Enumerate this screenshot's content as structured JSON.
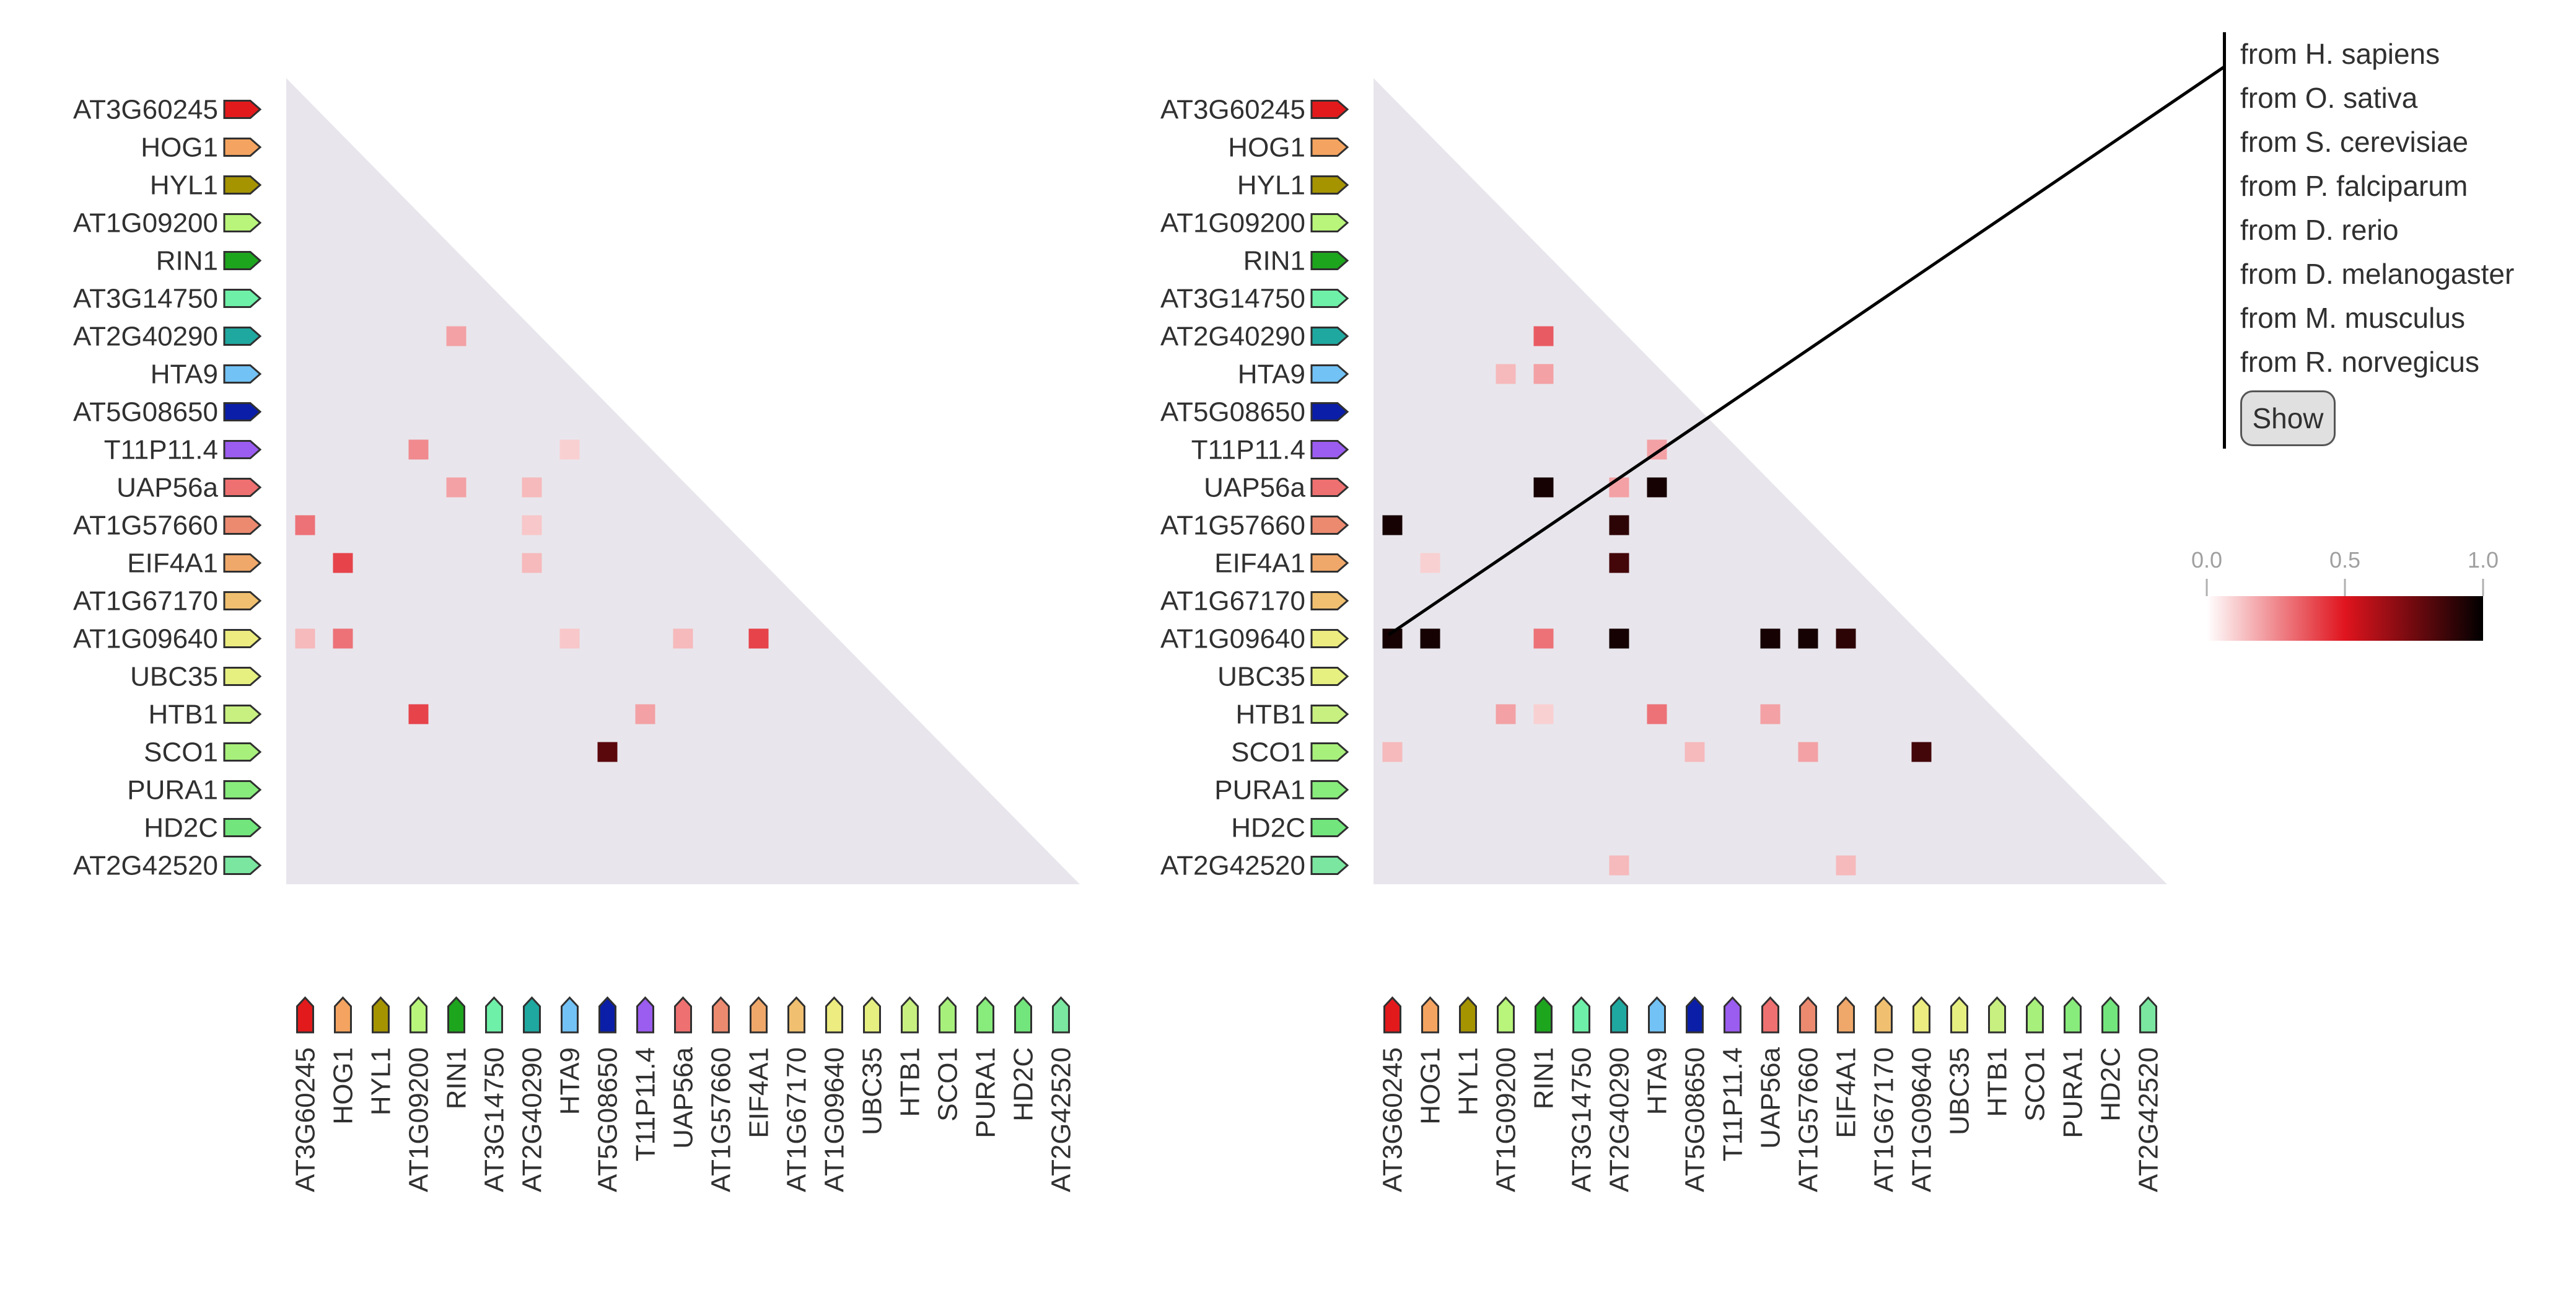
{
  "colors": {
    "background": "#ffffff",
    "triangle_fill": "#e8e6ec",
    "connector_line": "#000000",
    "scale_low": "#ffffff",
    "scale_mid": "#e0141e",
    "scale_high": "#000000"
  },
  "species_filter": {
    "items": [
      "from H. sapiens",
      "from O. sativa",
      "from S. cerevisiae",
      "from P. falciparum",
      "from D. rerio",
      "from D. melanogaster",
      "from M. musculus",
      "from R. norvegicus"
    ],
    "show_label": "Show"
  },
  "chart_data": [
    {
      "type": "heatmap",
      "title": "",
      "genes": [
        {
          "name": "AT3G60245",
          "color": "#e31a1c"
        },
        {
          "name": "HOG1",
          "color": "#f4a460"
        },
        {
          "name": "HYL1",
          "color": "#a59400"
        },
        {
          "name": "AT1G09200",
          "color": "#b8f57a"
        },
        {
          "name": "RIN1",
          "color": "#1ea51e"
        },
        {
          "name": "AT3G14750",
          "color": "#6ef0a8"
        },
        {
          "name": "AT2G40290",
          "color": "#1fa8a0"
        },
        {
          "name": "HTA9",
          "color": "#72c2f5"
        },
        {
          "name": "AT5G08650",
          "color": "#0a1ea8"
        },
        {
          "name": "T11P11.4",
          "color": "#9b5cf0"
        },
        {
          "name": "UAP56a",
          "color": "#ee7070"
        },
        {
          "name": "AT1G57660",
          "color": "#ec8a70"
        },
        {
          "name": "EIF4A1",
          "color": "#f0a86a"
        },
        {
          "name": "AT1G67170",
          "color": "#f0c070"
        },
        {
          "name": "AT1G09640",
          "color": "#ecec80"
        },
        {
          "name": "UBC35",
          "color": "#e6f080"
        },
        {
          "name": "HTB1",
          "color": "#c8f080"
        },
        {
          "name": "SCO1",
          "color": "#a8f07c"
        },
        {
          "name": "PURA1",
          "color": "#88ec7c"
        },
        {
          "name": "HD2C",
          "color": "#72e67c"
        },
        {
          "name": "AT2G42520",
          "color": "#7ae6a0"
        }
      ],
      "value_range": [
        0.0,
        1.0
      ],
      "cells": [
        {
          "row": "AT2G40290",
          "col": "RIN1",
          "value": 0.2
        },
        {
          "row": "T11P11.4",
          "col": "AT1G09200",
          "value": 0.25
        },
        {
          "row": "T11P11.4",
          "col": "HTA9",
          "value": 0.1
        },
        {
          "row": "UAP56a",
          "col": "RIN1",
          "value": 0.2
        },
        {
          "row": "UAP56a",
          "col": "AT2G40290",
          "value": 0.15
        },
        {
          "row": "AT1G57660",
          "col": "AT3G60245",
          "value": 0.3
        },
        {
          "row": "AT1G57660",
          "col": "AT2G40290",
          "value": 0.12
        },
        {
          "row": "EIF4A1",
          "col": "HOG1",
          "value": 0.4
        },
        {
          "row": "EIF4A1",
          "col": "AT2G40290",
          "value": 0.15
        },
        {
          "row": "AT1G09640",
          "col": "AT3G60245",
          "value": 0.15
        },
        {
          "row": "AT1G09640",
          "col": "HOG1",
          "value": 0.3
        },
        {
          "row": "AT1G09640",
          "col": "HTA9",
          "value": 0.12
        },
        {
          "row": "AT1G09640",
          "col": "UAP56a",
          "value": 0.15
        },
        {
          "row": "AT1G09640",
          "col": "EIF4A1",
          "value": 0.4
        },
        {
          "row": "HTB1",
          "col": "AT1G09200",
          "value": 0.4
        },
        {
          "row": "HTB1",
          "col": "T11P11.4",
          "value": 0.2
        },
        {
          "row": "SCO1",
          "col": "AT5G08650",
          "value": 0.8
        }
      ]
    },
    {
      "type": "heatmap",
      "title": "",
      "genes": [
        {
          "name": "AT3G60245",
          "color": "#e31a1c"
        },
        {
          "name": "HOG1",
          "color": "#f4a460"
        },
        {
          "name": "HYL1",
          "color": "#a59400"
        },
        {
          "name": "AT1G09200",
          "color": "#b8f57a"
        },
        {
          "name": "RIN1",
          "color": "#1ea51e"
        },
        {
          "name": "AT3G14750",
          "color": "#6ef0a8"
        },
        {
          "name": "AT2G40290",
          "color": "#1fa8a0"
        },
        {
          "name": "HTA9",
          "color": "#72c2f5"
        },
        {
          "name": "AT5G08650",
          "color": "#0a1ea8"
        },
        {
          "name": "T11P11.4",
          "color": "#9b5cf0"
        },
        {
          "name": "UAP56a",
          "color": "#ee7070"
        },
        {
          "name": "AT1G57660",
          "color": "#ec8a70"
        },
        {
          "name": "EIF4A1",
          "color": "#f0a86a"
        },
        {
          "name": "AT1G67170",
          "color": "#f0c070"
        },
        {
          "name": "AT1G09640",
          "color": "#ecec80"
        },
        {
          "name": "UBC35",
          "color": "#e6f080"
        },
        {
          "name": "HTB1",
          "color": "#c8f080"
        },
        {
          "name": "SCO1",
          "color": "#a8f07c"
        },
        {
          "name": "PURA1",
          "color": "#88ec7c"
        },
        {
          "name": "HD2C",
          "color": "#72e67c"
        },
        {
          "name": "AT2G42520",
          "color": "#7ae6a0"
        }
      ],
      "value_range": [
        0.0,
        1.0
      ],
      "highlight": {
        "row": "AT1G09640",
        "col": "AT3G60245"
      },
      "cells": [
        {
          "row": "AT2G40290",
          "col": "RIN1",
          "value": 0.35
        },
        {
          "row": "HTA9",
          "col": "AT1G09200",
          "value": 0.15
        },
        {
          "row": "HTA9",
          "col": "RIN1",
          "value": 0.2
        },
        {
          "row": "T11P11.4",
          "col": "HTA9",
          "value": 0.2
        },
        {
          "row": "UAP56a",
          "col": "RIN1",
          "value": 0.95
        },
        {
          "row": "UAP56a",
          "col": "AT2G40290",
          "value": 0.2
        },
        {
          "row": "UAP56a",
          "col": "HTA9",
          "value": 0.95
        },
        {
          "row": "AT1G57660",
          "col": "AT3G60245",
          "value": 0.95
        },
        {
          "row": "AT1G57660",
          "col": "AT2G40290",
          "value": 0.9
        },
        {
          "row": "EIF4A1",
          "col": "HOG1",
          "value": 0.1
        },
        {
          "row": "EIF4A1",
          "col": "AT2G40290",
          "value": 0.85
        },
        {
          "row": "AT1G09640",
          "col": "AT3G60245",
          "value": 0.95
        },
        {
          "row": "AT1G09640",
          "col": "HOG1",
          "value": 0.95
        },
        {
          "row": "AT1G09640",
          "col": "RIN1",
          "value": 0.3
        },
        {
          "row": "AT1G09640",
          "col": "AT2G40290",
          "value": 0.95
        },
        {
          "row": "AT1G09640",
          "col": "UAP56a",
          "value": 0.95
        },
        {
          "row": "AT1G09640",
          "col": "AT1G57660",
          "value": 0.95
        },
        {
          "row": "AT1G09640",
          "col": "EIF4A1",
          "value": 0.9
        },
        {
          "row": "HTB1",
          "col": "AT1G09200",
          "value": 0.2
        },
        {
          "row": "HTB1",
          "col": "RIN1",
          "value": 0.1
        },
        {
          "row": "HTB1",
          "col": "HTA9",
          "value": 0.3
        },
        {
          "row": "HTB1",
          "col": "UAP56a",
          "value": 0.2
        },
        {
          "row": "SCO1",
          "col": "AT3G60245",
          "value": 0.15
        },
        {
          "row": "SCO1",
          "col": "AT5G08650",
          "value": 0.15
        },
        {
          "row": "SCO1",
          "col": "AT1G57660",
          "value": 0.2
        },
        {
          "row": "SCO1",
          "col": "AT1G09640",
          "value": 0.85
        },
        {
          "row": "AT2G42520",
          "col": "AT2G40290",
          "value": 0.15
        },
        {
          "row": "AT2G42520",
          "col": "EIF4A1",
          "value": 0.15
        }
      ]
    }
  ],
  "color_scale": {
    "ticks": [
      "0.0",
      "0.5",
      "1.0"
    ],
    "tick_values": [
      0.0,
      0.5,
      1.0
    ]
  }
}
